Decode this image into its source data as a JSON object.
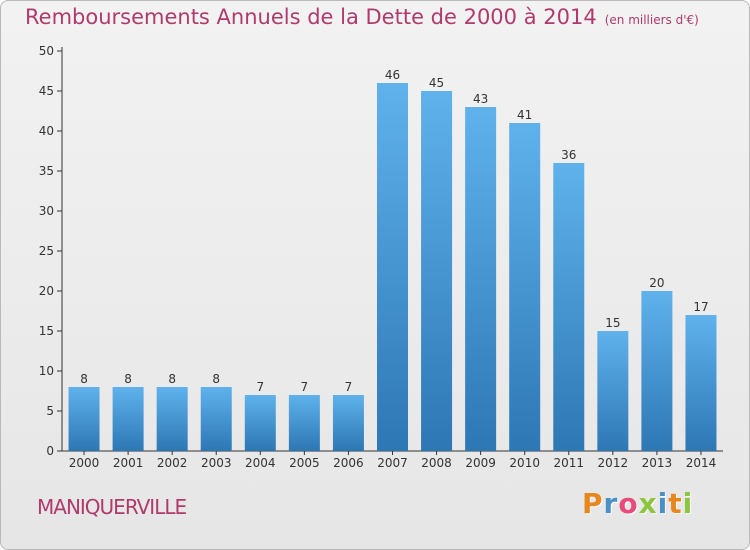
{
  "title": "Remboursements Annuels de la Dette de 2000 à 2014",
  "subtitle": "(en milliers d'€)",
  "commune": "MANIQUERVILLE",
  "brand": {
    "letters": [
      "P",
      "r",
      "o",
      "x",
      "i",
      "t",
      "i"
    ],
    "colors": [
      "#e8861f",
      "#4a90c8",
      "#e84a7a",
      "#8cc63f",
      "#4a90c8",
      "#e8861f",
      "#8cc63f"
    ]
  },
  "colors": {
    "bar_top": "#5fb2ec",
    "bar_bottom": "#2d77b4",
    "title": "#b13a6c"
  },
  "chart_data": {
    "type": "bar",
    "categories": [
      "2000",
      "2001",
      "2002",
      "2003",
      "2004",
      "2005",
      "2006",
      "2007",
      "2008",
      "2009",
      "2010",
      "2011",
      "2012",
      "2013",
      "2014"
    ],
    "values": [
      8,
      8,
      8,
      8,
      7,
      7,
      7,
      46,
      45,
      43,
      41,
      36,
      15,
      20,
      17
    ],
    "ylim": [
      0,
      50
    ],
    "yticks": [
      0,
      5,
      10,
      15,
      20,
      25,
      30,
      35,
      40,
      45,
      50
    ],
    "grid": false,
    "legend": "none"
  }
}
